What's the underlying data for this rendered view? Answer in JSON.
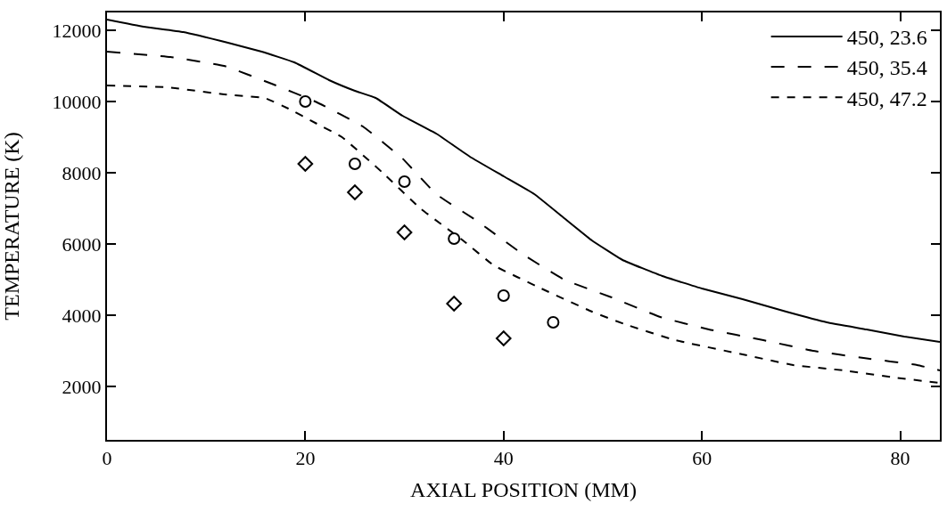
{
  "chart_data": {
    "type": "line",
    "xlabel": "AXIAL POSITION (MM)",
    "ylabel": "TEMPERATURE (K)",
    "xlim": [
      0,
      84
    ],
    "xticks": [
      0,
      20,
      40,
      60,
      80
    ],
    "ylim": [
      500,
      12500
    ],
    "yticks": [
      2000,
      4000,
      6000,
      8000,
      10000,
      12000
    ],
    "legend": "top right",
    "series": [
      {
        "name": "450, 23.6",
        "color": "#000000",
        "line_style": "solid",
        "marker": "none",
        "x": [
          0,
          3.7,
          7.7,
          12.2,
          15.6,
          18.9,
          22.4,
          25,
          27.1,
          29.8,
          33.2,
          36.6,
          40,
          43.1,
          46,
          48.9,
          52,
          56,
          60,
          64.1,
          68.5,
          72.6,
          76.6,
          80.4,
          84
        ],
        "values": [
          12300,
          12100,
          11950,
          11650,
          11400,
          11100,
          10600,
          10300,
          10100,
          9600,
          9100,
          8450,
          7900,
          7400,
          6750,
          6100,
          5550,
          5100,
          4750,
          4450,
          4100,
          3800,
          3600,
          3400,
          3250
        ]
      },
      {
        "name": "450, 35.4",
        "color": "#000000",
        "line_style": "dashed",
        "marker": "none",
        "x": [
          0,
          6.4,
          11.8,
          16.6,
          21,
          25.8,
          29.8,
          33.2,
          37.3,
          42,
          46.1,
          50.9,
          55.8,
          60.7,
          66.2,
          71.2,
          76.3,
          81.7,
          84
        ],
        "values": [
          11400,
          11250,
          11000,
          10500,
          10000,
          9300,
          8400,
          7400,
          6650,
          5700,
          5000,
          4500,
          3950,
          3600,
          3300,
          3000,
          2800,
          2600,
          2450
        ]
      },
      {
        "name": "450, 47.2",
        "color": "#000000",
        "line_style": "dashed",
        "marker": "none",
        "x": [
          0,
          6.1,
          11.8,
          15.9,
          18.3,
          21,
          23.7,
          27.8,
          31.6,
          35.9,
          39,
          43.8,
          48.9,
          52.2,
          57.3,
          64.1,
          69.2,
          74.3,
          79.4,
          84
        ],
        "values": [
          10450,
          10400,
          10200,
          10100,
          9800,
          9400,
          9000,
          8000,
          7000,
          6100,
          5400,
          4750,
          4100,
          3750,
          3300,
          2900,
          2600,
          2450,
          2250,
          2100
        ]
      },
      {
        "type": "scatter",
        "color": "#000000",
        "marker": "circle",
        "x": [
          20,
          25,
          30,
          35,
          40,
          45
        ],
        "values": [
          10000,
          8250,
          7750,
          6150,
          4550,
          3800
        ]
      },
      {
        "type": "scatter",
        "color": "#000000",
        "marker": "diamond",
        "x": [
          20,
          25,
          30,
          35,
          40
        ],
        "values": [
          8250,
          7450,
          6325,
          4325,
          3350
        ]
      }
    ]
  }
}
